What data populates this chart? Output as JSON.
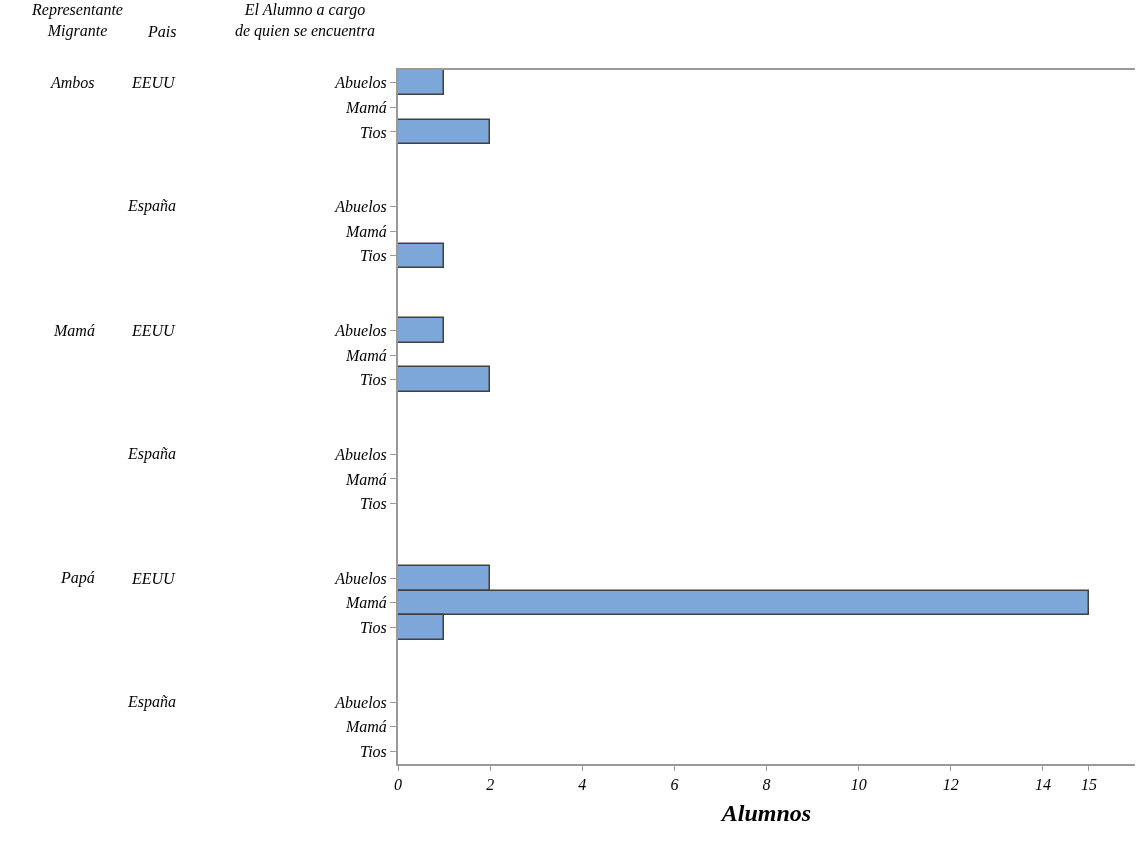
{
  "chart_data": {
    "type": "bar",
    "orientation": "horizontal",
    "xlabel": "Alumnos",
    "categories": [
      "Abuelos",
      "Mamá",
      "Tios",
      null,
      null,
      "Abuelos",
      "Mamá",
      "Tios",
      null,
      null,
      "Abuelos",
      "Mamá",
      "Tios",
      null,
      null,
      "Abuelos",
      "Mamá",
      "Tios",
      null,
      null,
      "Abuelos",
      "Mamá",
      "Tios",
      null,
      null,
      "Abuelos",
      "Mamá",
      "Tios"
    ],
    "values": [
      1,
      0,
      2,
      null,
      null,
      0,
      0,
      1,
      null,
      null,
      1,
      0,
      2,
      null,
      null,
      0,
      0,
      0,
      null,
      null,
      2,
      15,
      1,
      null,
      null,
      0,
      0,
      0
    ],
    "color": "#7da7d9",
    "xlim": [
      0,
      16
    ],
    "xticks": [
      0,
      2,
      4,
      6,
      8,
      10,
      12,
      14,
      15
    ],
    "grid": false,
    "annotations": [
      "Representante\nMigrante",
      "Pais",
      "El Alumno a cargo\nde quien se encuentra",
      "Ambos",
      "EEUU",
      "España",
      "Mamá",
      "EEUU",
      "España",
      "Papá",
      "EEUU",
      "España"
    ]
  }
}
